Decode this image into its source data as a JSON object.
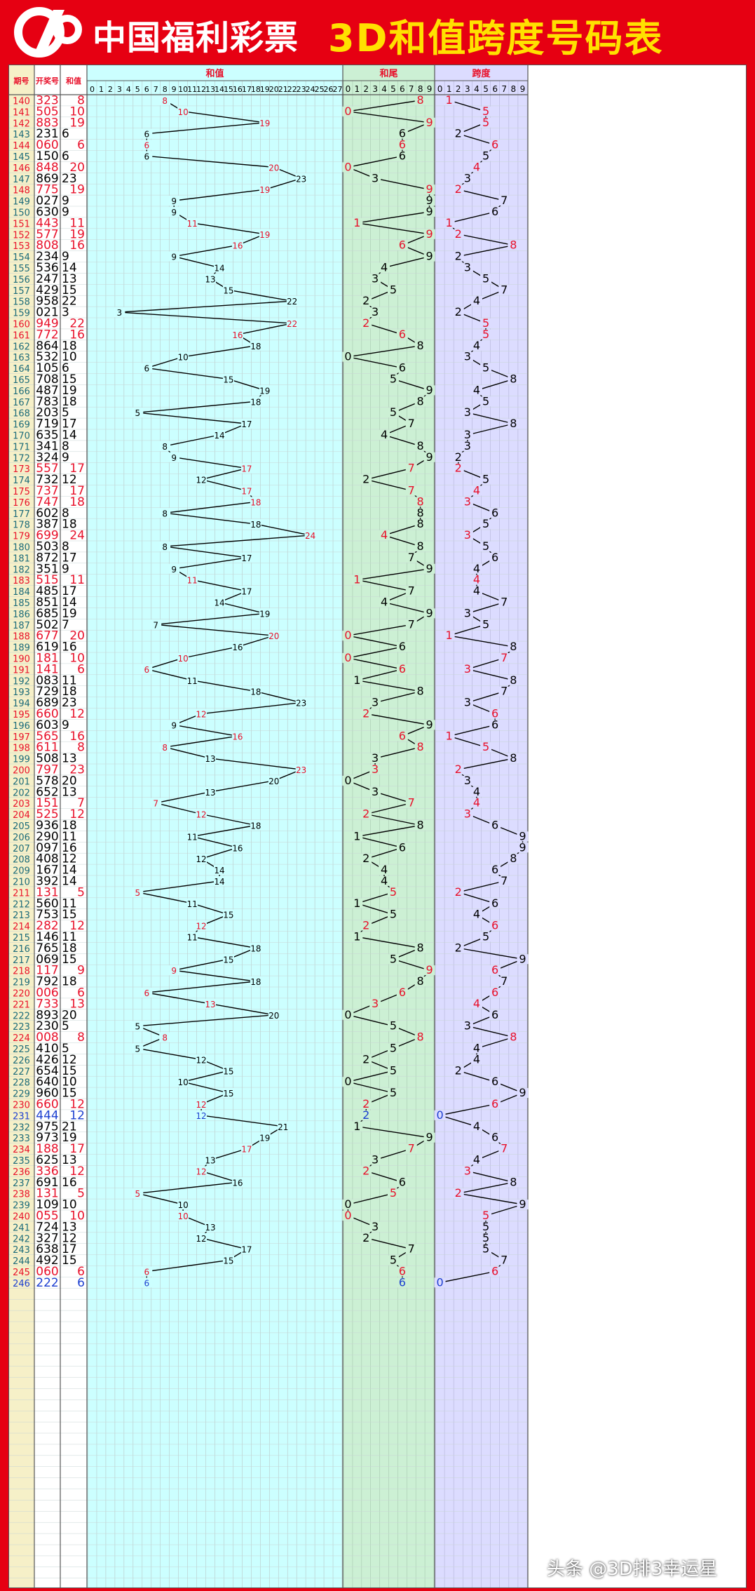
{
  "header": {
    "brand": "中国福利彩票",
    "title": "3D和值跨度号码表"
  },
  "watermark": "头条 @3D排3幸运星",
  "colors": {
    "banner_red": "#e60012",
    "title_yellow": "#ffe100",
    "sum_panel": "#ccffff",
    "tail_panel": "#ccf0d4",
    "span_panel": "#dcdcff",
    "id_column": "#f6f0c8",
    "number_red": "#e8102a",
    "number_black": "#000000",
    "number_blue": "#1c3fd0",
    "line_color": "#000000"
  },
  "chart_data": {
    "type": "line",
    "column_headers": {
      "issue": "期号",
      "number": "开奖号",
      "sum": "和值",
      "sum_panel": "和值",
      "tail_panel": "和尾",
      "span_panel": "跨度"
    },
    "sum_axis_ticks": [
      0,
      1,
      2,
      3,
      4,
      5,
      6,
      7,
      8,
      9,
      10,
      11,
      12,
      13,
      14,
      15,
      16,
      17,
      18,
      19,
      20,
      21,
      22,
      23,
      24,
      25,
      26,
      27
    ],
    "tail_axis_ticks": [
      0,
      1,
      2,
      3,
      4,
      5,
      6,
      7,
      8,
      9
    ],
    "span_axis_ticks": [
      0,
      1,
      2,
      3,
      4,
      5,
      6,
      7,
      8,
      9
    ],
    "rows": [
      {
        "issue": "140",
        "number": "323",
        "sum": 8,
        "tail": 8,
        "span": 1,
        "color": "red"
      },
      {
        "issue": "141",
        "number": "505",
        "sum": 10,
        "tail": 0,
        "span": 5,
        "color": "red"
      },
      {
        "issue": "142",
        "number": "883",
        "sum": 19,
        "tail": 9,
        "span": 5,
        "color": "red"
      },
      {
        "issue": "143",
        "number": "231",
        "sum": 6,
        "tail": 6,
        "span": 2,
        "color": "black"
      },
      {
        "issue": "144",
        "number": "060",
        "sum": 6,
        "tail": 6,
        "span": 6,
        "color": "red"
      },
      {
        "issue": "145",
        "number": "150",
        "sum": 6,
        "tail": 6,
        "span": 5,
        "color": "black"
      },
      {
        "issue": "146",
        "number": "848",
        "sum": 20,
        "tail": 0,
        "span": 4,
        "color": "red"
      },
      {
        "issue": "147",
        "number": "869",
        "sum": 23,
        "tail": 3,
        "span": 3,
        "color": "black"
      },
      {
        "issue": "148",
        "number": "775",
        "sum": 19,
        "tail": 9,
        "span": 2,
        "color": "red"
      },
      {
        "issue": "149",
        "number": "027",
        "sum": 9,
        "tail": 9,
        "span": 7,
        "color": "black"
      },
      {
        "issue": "150",
        "number": "630",
        "sum": 9,
        "tail": 9,
        "span": 6,
        "color": "black"
      },
      {
        "issue": "151",
        "number": "443",
        "sum": 11,
        "tail": 1,
        "span": 1,
        "color": "red"
      },
      {
        "issue": "152",
        "number": "577",
        "sum": 19,
        "tail": 9,
        "span": 2,
        "color": "red"
      },
      {
        "issue": "153",
        "number": "808",
        "sum": 16,
        "tail": 6,
        "span": 8,
        "color": "red"
      },
      {
        "issue": "154",
        "number": "234",
        "sum": 9,
        "tail": 9,
        "span": 2,
        "color": "black"
      },
      {
        "issue": "155",
        "number": "536",
        "sum": 14,
        "tail": 4,
        "span": 3,
        "color": "black"
      },
      {
        "issue": "156",
        "number": "247",
        "sum": 13,
        "tail": 3,
        "span": 5,
        "color": "black"
      },
      {
        "issue": "157",
        "number": "429",
        "sum": 15,
        "tail": 5,
        "span": 7,
        "color": "black"
      },
      {
        "issue": "158",
        "number": "958",
        "sum": 22,
        "tail": 2,
        "span": 4,
        "color": "black"
      },
      {
        "issue": "159",
        "number": "021",
        "sum": 3,
        "tail": 3,
        "span": 2,
        "color": "black"
      },
      {
        "issue": "160",
        "number": "949",
        "sum": 22,
        "tail": 2,
        "span": 5,
        "color": "red"
      },
      {
        "issue": "161",
        "number": "772",
        "sum": 16,
        "tail": 6,
        "span": 5,
        "color": "red"
      },
      {
        "issue": "162",
        "number": "864",
        "sum": 18,
        "tail": 8,
        "span": 4,
        "color": "black"
      },
      {
        "issue": "163",
        "number": "532",
        "sum": 10,
        "tail": 0,
        "span": 3,
        "color": "black"
      },
      {
        "issue": "164",
        "number": "105",
        "sum": 6,
        "tail": 6,
        "span": 5,
        "color": "black"
      },
      {
        "issue": "165",
        "number": "708",
        "sum": 15,
        "tail": 5,
        "span": 8,
        "color": "black"
      },
      {
        "issue": "166",
        "number": "487",
        "sum": 19,
        "tail": 9,
        "span": 4,
        "color": "black"
      },
      {
        "issue": "167",
        "number": "783",
        "sum": 18,
        "tail": 8,
        "span": 5,
        "color": "black"
      },
      {
        "issue": "168",
        "number": "203",
        "sum": 5,
        "tail": 5,
        "span": 3,
        "color": "black"
      },
      {
        "issue": "169",
        "number": "719",
        "sum": 17,
        "tail": 7,
        "span": 8,
        "color": "black"
      },
      {
        "issue": "170",
        "number": "635",
        "sum": 14,
        "tail": 4,
        "span": 3,
        "color": "black"
      },
      {
        "issue": "171",
        "number": "341",
        "sum": 8,
        "tail": 8,
        "span": 3,
        "color": "black"
      },
      {
        "issue": "172",
        "number": "324",
        "sum": 9,
        "tail": 9,
        "span": 2,
        "color": "black"
      },
      {
        "issue": "173",
        "number": "557",
        "sum": 17,
        "tail": 7,
        "span": 2,
        "color": "red"
      },
      {
        "issue": "174",
        "number": "732",
        "sum": 12,
        "tail": 2,
        "span": 5,
        "color": "black"
      },
      {
        "issue": "175",
        "number": "737",
        "sum": 17,
        "tail": 7,
        "span": 4,
        "color": "red"
      },
      {
        "issue": "176",
        "number": "747",
        "sum": 18,
        "tail": 8,
        "span": 3,
        "color": "red"
      },
      {
        "issue": "177",
        "number": "602",
        "sum": 8,
        "tail": 8,
        "span": 6,
        "color": "black"
      },
      {
        "issue": "178",
        "number": "387",
        "sum": 18,
        "tail": 8,
        "span": 5,
        "color": "black"
      },
      {
        "issue": "179",
        "number": "699",
        "sum": 24,
        "tail": 4,
        "span": 3,
        "color": "red"
      },
      {
        "issue": "180",
        "number": "503",
        "sum": 8,
        "tail": 8,
        "span": 5,
        "color": "black"
      },
      {
        "issue": "181",
        "number": "872",
        "sum": 17,
        "tail": 7,
        "span": 6,
        "color": "black"
      },
      {
        "issue": "182",
        "number": "351",
        "sum": 9,
        "tail": 9,
        "span": 4,
        "color": "black"
      },
      {
        "issue": "183",
        "number": "515",
        "sum": 11,
        "tail": 1,
        "span": 4,
        "color": "red"
      },
      {
        "issue": "184",
        "number": "485",
        "sum": 17,
        "tail": 7,
        "span": 4,
        "color": "black"
      },
      {
        "issue": "185",
        "number": "851",
        "sum": 14,
        "tail": 4,
        "span": 7,
        "color": "black"
      },
      {
        "issue": "186",
        "number": "685",
        "sum": 19,
        "tail": 9,
        "span": 3,
        "color": "black"
      },
      {
        "issue": "187",
        "number": "502",
        "sum": 7,
        "tail": 7,
        "span": 5,
        "color": "black"
      },
      {
        "issue": "188",
        "number": "677",
        "sum": 20,
        "tail": 0,
        "span": 1,
        "color": "red"
      },
      {
        "issue": "189",
        "number": "619",
        "sum": 16,
        "tail": 6,
        "span": 8,
        "color": "black"
      },
      {
        "issue": "190",
        "number": "181",
        "sum": 10,
        "tail": 0,
        "span": 7,
        "color": "red"
      },
      {
        "issue": "191",
        "number": "141",
        "sum": 6,
        "tail": 6,
        "span": 3,
        "color": "red"
      },
      {
        "issue": "192",
        "number": "083",
        "sum": 11,
        "tail": 1,
        "span": 8,
        "color": "black"
      },
      {
        "issue": "193",
        "number": "729",
        "sum": 18,
        "tail": 8,
        "span": 7,
        "color": "black"
      },
      {
        "issue": "194",
        "number": "689",
        "sum": 23,
        "tail": 3,
        "span": 3,
        "color": "black"
      },
      {
        "issue": "195",
        "number": "660",
        "sum": 12,
        "tail": 2,
        "span": 6,
        "color": "red"
      },
      {
        "issue": "196",
        "number": "603",
        "sum": 9,
        "tail": 9,
        "span": 6,
        "color": "black"
      },
      {
        "issue": "197",
        "number": "565",
        "sum": 16,
        "tail": 6,
        "span": 1,
        "color": "red"
      },
      {
        "issue": "198",
        "number": "611",
        "sum": 8,
        "tail": 8,
        "span": 5,
        "color": "red"
      },
      {
        "issue": "199",
        "number": "508",
        "sum": 13,
        "tail": 3,
        "span": 8,
        "color": "black"
      },
      {
        "issue": "200",
        "number": "797",
        "sum": 23,
        "tail": 3,
        "span": 2,
        "color": "red"
      },
      {
        "issue": "201",
        "number": "578",
        "sum": 20,
        "tail": 0,
        "span": 3,
        "color": "black"
      },
      {
        "issue": "202",
        "number": "652",
        "sum": 13,
        "tail": 3,
        "span": 4,
        "color": "black"
      },
      {
        "issue": "203",
        "number": "151",
        "sum": 7,
        "tail": 7,
        "span": 4,
        "color": "red"
      },
      {
        "issue": "204",
        "number": "525",
        "sum": 12,
        "tail": 2,
        "span": 3,
        "color": "red"
      },
      {
        "issue": "205",
        "number": "936",
        "sum": 18,
        "tail": 8,
        "span": 6,
        "color": "black"
      },
      {
        "issue": "206",
        "number": "290",
        "sum": 11,
        "tail": 1,
        "span": 9,
        "color": "black"
      },
      {
        "issue": "207",
        "number": "097",
        "sum": 16,
        "tail": 6,
        "span": 9,
        "color": "black"
      },
      {
        "issue": "208",
        "number": "408",
        "sum": 12,
        "tail": 2,
        "span": 8,
        "color": "black"
      },
      {
        "issue": "209",
        "number": "167",
        "sum": 14,
        "tail": 4,
        "span": 6,
        "color": "black"
      },
      {
        "issue": "210",
        "number": "392",
        "sum": 14,
        "tail": 4,
        "span": 7,
        "color": "black"
      },
      {
        "issue": "211",
        "number": "131",
        "sum": 5,
        "tail": 5,
        "span": 2,
        "color": "red"
      },
      {
        "issue": "212",
        "number": "560",
        "sum": 11,
        "tail": 1,
        "span": 6,
        "color": "black"
      },
      {
        "issue": "213",
        "number": "753",
        "sum": 15,
        "tail": 5,
        "span": 4,
        "color": "black"
      },
      {
        "issue": "214",
        "number": "282",
        "sum": 12,
        "tail": 2,
        "span": 6,
        "color": "red"
      },
      {
        "issue": "215",
        "number": "146",
        "sum": 11,
        "tail": 1,
        "span": 5,
        "color": "black"
      },
      {
        "issue": "216",
        "number": "765",
        "sum": 18,
        "tail": 8,
        "span": 2,
        "color": "black"
      },
      {
        "issue": "217",
        "number": "069",
        "sum": 15,
        "tail": 5,
        "span": 9,
        "color": "black"
      },
      {
        "issue": "218",
        "number": "117",
        "sum": 9,
        "tail": 9,
        "span": 6,
        "color": "red"
      },
      {
        "issue": "219",
        "number": "792",
        "sum": 18,
        "tail": 8,
        "span": 7,
        "color": "black"
      },
      {
        "issue": "220",
        "number": "006",
        "sum": 6,
        "tail": 6,
        "span": 6,
        "color": "red"
      },
      {
        "issue": "221",
        "number": "733",
        "sum": 13,
        "tail": 3,
        "span": 4,
        "color": "red"
      },
      {
        "issue": "222",
        "number": "893",
        "sum": 20,
        "tail": 0,
        "span": 6,
        "color": "black"
      },
      {
        "issue": "223",
        "number": "230",
        "sum": 5,
        "tail": 5,
        "span": 3,
        "color": "black"
      },
      {
        "issue": "224",
        "number": "008",
        "sum": 8,
        "tail": 8,
        "span": 8,
        "color": "red"
      },
      {
        "issue": "225",
        "number": "410",
        "sum": 5,
        "tail": 5,
        "span": 4,
        "color": "black"
      },
      {
        "issue": "226",
        "number": "426",
        "sum": 12,
        "tail": 2,
        "span": 4,
        "color": "black"
      },
      {
        "issue": "227",
        "number": "654",
        "sum": 15,
        "tail": 5,
        "span": 2,
        "color": "black"
      },
      {
        "issue": "228",
        "number": "640",
        "sum": 10,
        "tail": 0,
        "span": 6,
        "color": "black"
      },
      {
        "issue": "229",
        "number": "960",
        "sum": 15,
        "tail": 5,
        "span": 9,
        "color": "black"
      },
      {
        "issue": "230",
        "number": "660",
        "sum": 12,
        "tail": 2,
        "span": 6,
        "color": "red"
      },
      {
        "issue": "231",
        "number": "444",
        "sum": 12,
        "tail": 2,
        "span": 0,
        "color": "blue"
      },
      {
        "issue": "232",
        "number": "975",
        "sum": 21,
        "tail": 1,
        "span": 4,
        "color": "black"
      },
      {
        "issue": "233",
        "number": "973",
        "sum": 19,
        "tail": 9,
        "span": 6,
        "color": "black"
      },
      {
        "issue": "234",
        "number": "188",
        "sum": 17,
        "tail": 7,
        "span": 7,
        "color": "red"
      },
      {
        "issue": "235",
        "number": "625",
        "sum": 13,
        "tail": 3,
        "span": 4,
        "color": "black"
      },
      {
        "issue": "236",
        "number": "336",
        "sum": 12,
        "tail": 2,
        "span": 3,
        "color": "red"
      },
      {
        "issue": "237",
        "number": "691",
        "sum": 16,
        "tail": 6,
        "span": 8,
        "color": "black"
      },
      {
        "issue": "238",
        "number": "131",
        "sum": 5,
        "tail": 5,
        "span": 2,
        "color": "red"
      },
      {
        "issue": "239",
        "number": "109",
        "sum": 10,
        "tail": 0,
        "span": 9,
        "color": "black"
      },
      {
        "issue": "240",
        "number": "055",
        "sum": 10,
        "tail": 0,
        "span": 5,
        "color": "red"
      },
      {
        "issue": "241",
        "number": "724",
        "sum": 13,
        "tail": 3,
        "span": 5,
        "color": "black"
      },
      {
        "issue": "242",
        "number": "327",
        "sum": 12,
        "tail": 2,
        "span": 5,
        "color": "black"
      },
      {
        "issue": "243",
        "number": "638",
        "sum": 17,
        "tail": 7,
        "span": 5,
        "color": "black"
      },
      {
        "issue": "244",
        "number": "492",
        "sum": 15,
        "tail": 5,
        "span": 7,
        "color": "black"
      },
      {
        "issue": "245",
        "number": "060",
        "sum": 6,
        "tail": 6,
        "span": 6,
        "color": "red"
      },
      {
        "issue": "246",
        "number": "222",
        "sum": 6,
        "tail": 6,
        "span": 0,
        "color": "blue"
      }
    ]
  }
}
